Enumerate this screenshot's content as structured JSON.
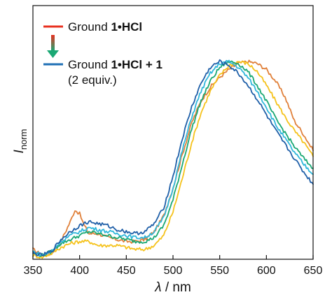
{
  "chart_data": {
    "type": "line",
    "xlabel_italic": "λ",
    "xlabel_rest": " / nm",
    "ylabel_main": "I",
    "ylabel_sub": "norm",
    "xlim": [
      350,
      650
    ],
    "ylim": [
      0,
      1
    ],
    "x_ticks": [
      350,
      400,
      450,
      500,
      550,
      600,
      650
    ],
    "x_tick_labels": [
      "350",
      "400",
      "450",
      "500",
      "550",
      "600",
      "650"
    ],
    "grid": false,
    "legend": {
      "placement": "top-left",
      "entry1": {
        "prefix": "Ground ",
        "bold": "1•HCl",
        "color": "#e8301f"
      },
      "entry2": {
        "prefix": "Ground ",
        "bold": "1•HCl + 1",
        "line2": "(2 equiv.)",
        "color": "#1f6fb5"
      },
      "arrow_colors": [
        "#e8301f",
        "#1aa874"
      ]
    },
    "series": [
      {
        "color": "#e0803a",
        "x": [
          350,
          360,
          370,
          380,
          390,
          395,
          400,
          405,
          410,
          420,
          430,
          440,
          450,
          460,
          470,
          480,
          490,
          500,
          510,
          520,
          530,
          540,
          550,
          560,
          570,
          580,
          590,
          600,
          610,
          620,
          630,
          640,
          650
        ],
        "y": [
          0.05,
          0.02,
          0.03,
          0.09,
          0.19,
          0.25,
          0.23,
          0.17,
          0.13,
          0.13,
          0.11,
          0.1,
          0.09,
          0.09,
          0.1,
          0.14,
          0.22,
          0.36,
          0.53,
          0.69,
          0.8,
          0.87,
          0.92,
          0.96,
          0.99,
          1.0,
          0.99,
          0.96,
          0.9,
          0.82,
          0.7,
          0.63,
          0.55
        ]
      },
      {
        "color": "#f5c21b",
        "x": [
          350,
          360,
          370,
          380,
          390,
          400,
          410,
          420,
          430,
          440,
          450,
          460,
          470,
          480,
          490,
          500,
          510,
          520,
          530,
          540,
          550,
          560,
          570,
          580,
          590,
          600,
          610,
          620,
          630,
          640,
          650
        ],
        "y": [
          0.02,
          0.01,
          0.03,
          0.06,
          0.08,
          0.09,
          0.09,
          0.07,
          0.07,
          0.07,
          0.06,
          0.05,
          0.05,
          0.07,
          0.12,
          0.24,
          0.41,
          0.59,
          0.74,
          0.85,
          0.93,
          0.98,
          1.0,
          0.99,
          0.95,
          0.88,
          0.8,
          0.72,
          0.65,
          0.59,
          0.52
        ]
      },
      {
        "color": "#1aa874",
        "x": [
          350,
          360,
          370,
          380,
          390,
          400,
          410,
          420,
          430,
          440,
          450,
          460,
          470,
          480,
          490,
          500,
          510,
          520,
          530,
          540,
          550,
          560,
          570,
          580,
          590,
          600,
          610,
          620,
          630,
          640,
          650
        ],
        "y": [
          0.03,
          0.02,
          0.04,
          0.08,
          0.1,
          0.12,
          0.14,
          0.13,
          0.12,
          0.11,
          0.1,
          0.09,
          0.09,
          0.11,
          0.17,
          0.3,
          0.48,
          0.66,
          0.8,
          0.9,
          0.97,
          1.0,
          0.99,
          0.95,
          0.88,
          0.8,
          0.71,
          0.64,
          0.57,
          0.51,
          0.46
        ]
      },
      {
        "color": "#2fb7db",
        "x": [
          350,
          360,
          370,
          380,
          390,
          400,
          410,
          420,
          430,
          440,
          450,
          460,
          470,
          480,
          490,
          500,
          510,
          520,
          530,
          540,
          550,
          560,
          570,
          580,
          590,
          600,
          610,
          620,
          630,
          640,
          650
        ],
        "y": [
          0.04,
          0.02,
          0.04,
          0.09,
          0.12,
          0.14,
          0.16,
          0.15,
          0.14,
          0.13,
          0.12,
          0.11,
          0.11,
          0.14,
          0.21,
          0.36,
          0.55,
          0.72,
          0.85,
          0.94,
          0.99,
          1.0,
          0.97,
          0.92,
          0.85,
          0.77,
          0.68,
          0.61,
          0.54,
          0.48,
          0.43
        ]
      },
      {
        "color": "#1f5fa8",
        "x": [
          350,
          360,
          370,
          380,
          390,
          400,
          410,
          420,
          430,
          440,
          450,
          460,
          470,
          480,
          490,
          500,
          510,
          520,
          530,
          540,
          550,
          560,
          570,
          580,
          590,
          600,
          610,
          620,
          630,
          640,
          650
        ],
        "y": [
          0.03,
          0.02,
          0.04,
          0.1,
          0.14,
          0.17,
          0.19,
          0.18,
          0.17,
          0.15,
          0.14,
          0.13,
          0.14,
          0.18,
          0.26,
          0.42,
          0.61,
          0.77,
          0.89,
          0.97,
          1.0,
          0.98,
          0.94,
          0.88,
          0.81,
          0.73,
          0.65,
          0.58,
          0.51,
          0.44,
          0.38
        ]
      }
    ]
  }
}
